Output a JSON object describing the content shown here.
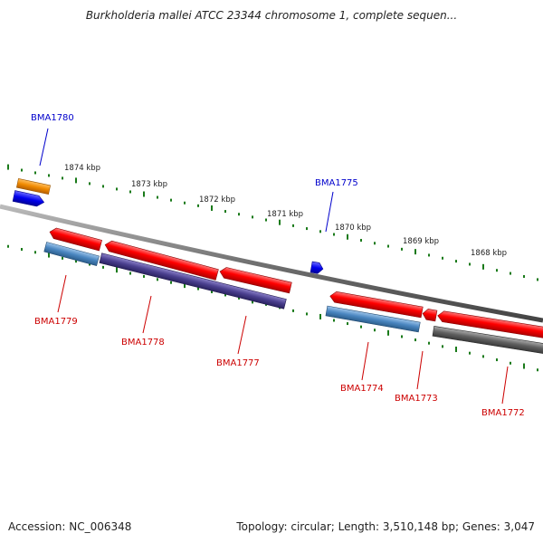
{
  "title": "Burkholderia mallei ATCC 23344 chromosome 1, complete sequen...",
  "footer": {
    "accession": "Accession: NC_006348",
    "summary": "Topology: circular; Length: 3,510,148 bp; Genes: 3,047"
  },
  "scale_labels": [
    {
      "id": "tick-1874",
      "text": "1874 kbp"
    },
    {
      "id": "tick-1873",
      "text": "1873 kbp"
    },
    {
      "id": "tick-1872",
      "text": "1872 kbp"
    },
    {
      "id": "tick-1871",
      "text": "1871 kbp"
    },
    {
      "id": "tick-1870",
      "text": "1870 kbp"
    },
    {
      "id": "tick-1869",
      "text": "1869 kbp"
    },
    {
      "id": "tick-1868",
      "text": "1868 kbp"
    }
  ],
  "gene_labels": [
    {
      "id": "BMA1780",
      "text": "BMA1780",
      "color": "#0000cc"
    },
    {
      "id": "BMA1775",
      "text": "BMA1775",
      "color": "#0000cc"
    },
    {
      "id": "BMA1779",
      "text": "BMA1779",
      "color": "#cc0000"
    },
    {
      "id": "BMA1778",
      "text": "BMA1778",
      "color": "#cc0000"
    },
    {
      "id": "BMA1777",
      "text": "BMA1777",
      "color": "#cc0000"
    },
    {
      "id": "BMA1774",
      "text": "BMA1774",
      "color": "#cc0000"
    },
    {
      "id": "BMA1773",
      "text": "BMA1773",
      "color": "#cc0000"
    },
    {
      "id": "BMA1772",
      "text": "BMA1772",
      "color": "#cc0000"
    }
  ],
  "colors": {
    "backbone": "#777777",
    "ticks": "#1a7a1a",
    "forward_cds": "#ff0000",
    "reverse_cds": "#0000ee",
    "orange_feature": "#f08a00",
    "steel_blue_feature": "#4a86c0",
    "purple_feature": "#4a3f8e",
    "gray_feature": "#606060"
  }
}
